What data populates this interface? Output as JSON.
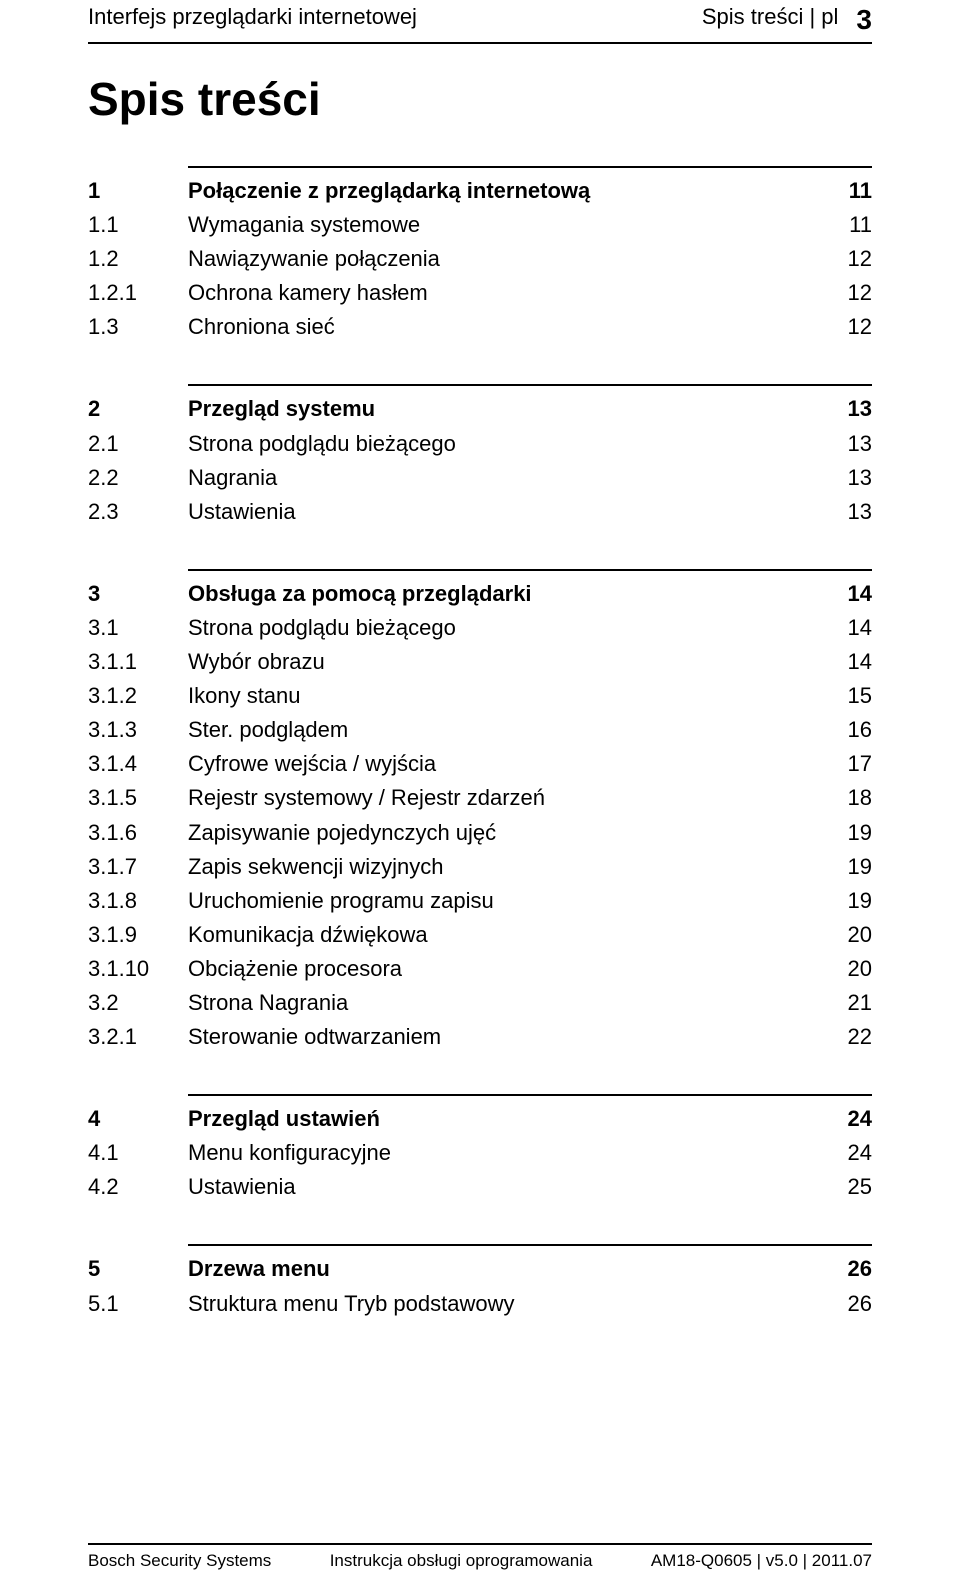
{
  "header": {
    "left": "Interfejs przeglądarki internetowej",
    "right": "Spis treści | pl",
    "page_number": "3"
  },
  "main_title": "Spis treści",
  "toc_blocks": [
    {
      "rows": [
        {
          "num": "1",
          "title": "Połączenie z przeglądarką internetową",
          "page": "11",
          "bold": true
        },
        {
          "num": "1.1",
          "title": "Wymagania systemowe",
          "page": "11"
        },
        {
          "num": "1.2",
          "title": "Nawiązywanie połączenia",
          "page": "12"
        },
        {
          "num": "1.2.1",
          "title": "Ochrona kamery hasłem",
          "page": "12"
        },
        {
          "num": "1.3",
          "title": "Chroniona sieć",
          "page": "12"
        }
      ]
    },
    {
      "rows": [
        {
          "num": "2",
          "title": "Przegląd systemu",
          "page": "13",
          "bold": true
        },
        {
          "num": "2.1",
          "title": "Strona podglądu bieżącego",
          "page": "13"
        },
        {
          "num": "2.2",
          "title": "Nagrania",
          "page": "13"
        },
        {
          "num": "2.3",
          "title": "Ustawienia",
          "page": "13"
        }
      ]
    },
    {
      "rows": [
        {
          "num": "3",
          "title": "Obsługa za pomocą przeglądarki",
          "page": "14",
          "bold": true
        },
        {
          "num": "3.1",
          "title": "Strona podglądu bieżącego",
          "page": "14"
        },
        {
          "num": "3.1.1",
          "title": "Wybór obrazu",
          "page": "14"
        },
        {
          "num": "3.1.2",
          "title": "Ikony stanu",
          "page": "15"
        },
        {
          "num": "3.1.3",
          "title": "Ster. podglądem",
          "page": "16"
        },
        {
          "num": "3.1.4",
          "title": "Cyfrowe wejścia / wyjścia",
          "page": "17"
        },
        {
          "num": "3.1.5",
          "title": "Rejestr systemowy / Rejestr zdarzeń",
          "page": "18"
        },
        {
          "num": "3.1.6",
          "title": "Zapisywanie pojedynczych ujęć",
          "page": "19"
        },
        {
          "num": "3.1.7",
          "title": "Zapis sekwencji wizyjnych",
          "page": "19"
        },
        {
          "num": "3.1.8",
          "title": "Uruchomienie programu zapisu",
          "page": "19"
        },
        {
          "num": "3.1.9",
          "title": "Komunikacja dźwiękowa",
          "page": "20"
        },
        {
          "num": "3.1.10",
          "title": "Obciążenie procesora",
          "page": "20"
        },
        {
          "num": "3.2",
          "title": "Strona Nagrania",
          "page": "21"
        },
        {
          "num": "3.2.1",
          "title": "Sterowanie odtwarzaniem",
          "page": "22"
        }
      ]
    },
    {
      "rows": [
        {
          "num": "4",
          "title": "Przegląd ustawień",
          "page": "24",
          "bold": true
        },
        {
          "num": "4.1",
          "title": "Menu konfiguracyjne",
          "page": "24"
        },
        {
          "num": "4.2",
          "title": "Ustawienia",
          "page": "25"
        }
      ]
    },
    {
      "rows": [
        {
          "num": "5",
          "title": "Drzewa menu",
          "page": "26",
          "bold": true
        },
        {
          "num": "5.1",
          "title": "Struktura menu Tryb podstawowy",
          "page": "26"
        }
      ]
    }
  ],
  "footer": {
    "left": "Bosch Security Systems",
    "center": "Instrukcja obsługi oprogramowania",
    "right": "AM18-Q0605 | v5.0 | 2011.07"
  }
}
